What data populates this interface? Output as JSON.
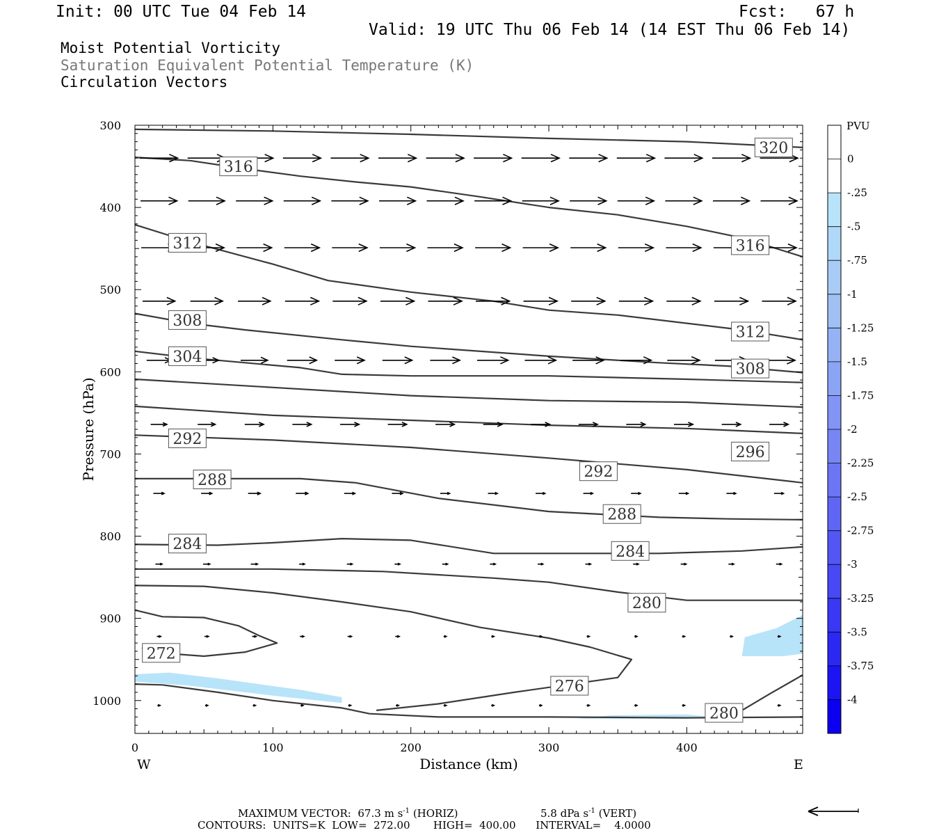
{
  "header": {
    "init": "Init: 00 UTC Tue 04 Feb 14",
    "fcst": "Fcst:   67 h",
    "valid": "Valid: 19 UTC Thu 06 Feb 14 (14 EST Thu 06 Feb 14)"
  },
  "fields": {
    "field1": "Moist Potential Vorticity",
    "field2": "Saturation Equivalent Potential Temperature (K)",
    "field3": "Circulation Vectors"
  },
  "footer": {
    "max_vector_label": "MAXIMUM VECTOR:",
    "horiz_value": "67.3",
    "horiz_units": "m s",
    "horiz_tag": "(HORIZ)",
    "vert_value": "5.8",
    "vert_units": "dPa s",
    "vert_tag": "(VERT)",
    "exp": "-1",
    "contours_line": "CONTOURS:  UNITS=K  LOW=  272.00       HIGH=  400.00      INTERVAL=    4.0000"
  },
  "colors": {
    "contour": "#3a3a3a",
    "vector": "#000000",
    "pv_fill": "#b8e4fa"
  },
  "chart_data": {
    "type": "cross-section",
    "xlabel": "Distance (km)",
    "ylabel": "Pressure (hPa)",
    "xlim": [
      0,
      484
    ],
    "ylim": [
      1040,
      300
    ],
    "xticks": [
      0,
      100,
      200,
      300,
      400
    ],
    "yticks": [
      300,
      400,
      500,
      600,
      700,
      800,
      900,
      1000
    ],
    "x_end_labels": {
      "left": "W",
      "right": "E"
    },
    "colorbar": {
      "title": "PVU",
      "levels": [
        "0",
        "-.25",
        "-.5",
        "-.75",
        "-1",
        "-1.25",
        "-1.5",
        "-1.75",
        "-2",
        "-2.25",
        "-2.5",
        "-2.75",
        "-3",
        "-3.25",
        "-3.5",
        "-3.75",
        "-4"
      ],
      "colors": [
        "#ffffff",
        "#ffffff",
        "#b8e4fa",
        "#b0d8f8",
        "#a8ccf6",
        "#a0c0f4",
        "#96b2f4",
        "#8ca4f4",
        "#8294f4",
        "#7886f4",
        "#6c76f4",
        "#6066f4",
        "#5456f4",
        "#4848f4",
        "#3a38f4",
        "#2c28f4",
        "#1c14f4",
        "#0c00f0"
      ]
    },
    "theta_es_contours": [
      {
        "value": 320,
        "points": [
          [
            0,
            305
          ],
          [
            100,
            307
          ],
          [
            200,
            311
          ],
          [
            300,
            316
          ],
          [
            400,
            320
          ],
          [
            484,
            327
          ]
        ]
      },
      {
        "value": 316,
        "points": [
          [
            0,
            339
          ],
          [
            40,
            343
          ],
          [
            80,
            353
          ],
          [
            120,
            362
          ],
          [
            160,
            369
          ],
          [
            200,
            375
          ],
          [
            250,
            387
          ],
          [
            300,
            400
          ],
          [
            350,
            409
          ],
          [
            400,
            423
          ],
          [
            440,
            437
          ],
          [
            484,
            460
          ]
        ]
      },
      {
        "value": 312,
        "points": [
          [
            0,
            421
          ],
          [
            40,
            442
          ],
          [
            60,
            451
          ],
          [
            100,
            469
          ],
          [
            140,
            489
          ],
          [
            200,
            503
          ],
          [
            260,
            514
          ],
          [
            300,
            525
          ],
          [
            350,
            531
          ],
          [
            400,
            541
          ],
          [
            440,
            549
          ],
          [
            484,
            561
          ]
        ]
      },
      {
        "value": 308,
        "points": [
          [
            0,
            529
          ],
          [
            40,
            541
          ],
          [
            80,
            549
          ],
          [
            150,
            561
          ],
          [
            200,
            569
          ],
          [
            300,
            581
          ],
          [
            380,
            589
          ],
          [
            430,
            593
          ],
          [
            484,
            601
          ]
        ]
      },
      {
        "value": 304,
        "points": [
          [
            0,
            575
          ],
          [
            40,
            583
          ],
          [
            80,
            589
          ],
          [
            120,
            595
          ],
          [
            150,
            603
          ],
          [
            200,
            605
          ],
          [
            300,
            605
          ],
          [
            400,
            609
          ],
          [
            484,
            613
          ]
        ]
      },
      {
        "value": 300,
        "points": [
          [
            0,
            609
          ],
          [
            100,
            619
          ],
          [
            200,
            629
          ],
          [
            300,
            635
          ],
          [
            400,
            637
          ],
          [
            484,
            643
          ]
        ]
      },
      {
        "value": 296,
        "points": [
          [
            0,
            642
          ],
          [
            100,
            653
          ],
          [
            200,
            659
          ],
          [
            300,
            665
          ],
          [
            400,
            669
          ],
          [
            484,
            675
          ]
        ]
      },
      {
        "value": 292,
        "points": [
          [
            0,
            677
          ],
          [
            100,
            683
          ],
          [
            200,
            692
          ],
          [
            300,
            705
          ],
          [
            400,
            719
          ],
          [
            484,
            735
          ]
        ]
      },
      {
        "value": 288,
        "points": [
          [
            0,
            730
          ],
          [
            80,
            730
          ],
          [
            120,
            730
          ],
          [
            160,
            735
          ],
          [
            220,
            754
          ],
          [
            300,
            770
          ],
          [
            380,
            777
          ],
          [
            430,
            779
          ],
          [
            484,
            780
          ]
        ]
      },
      {
        "value": 284,
        "points": [
          [
            0,
            810
          ],
          [
            60,
            811
          ],
          [
            100,
            808
          ],
          [
            150,
            803
          ],
          [
            200,
            805
          ],
          [
            260,
            821
          ],
          [
            320,
            821
          ],
          [
            380,
            821
          ],
          [
            440,
            818
          ],
          [
            484,
            813
          ]
        ]
      },
      {
        "value": 280,
        "points": [
          [
            0,
            840
          ],
          [
            100,
            840
          ],
          [
            180,
            843
          ],
          [
            260,
            851
          ],
          [
            300,
            856
          ],
          [
            350,
            868
          ],
          [
            400,
            878
          ],
          [
            484,
            878
          ]
        ]
      },
      {
        "value": 280,
        "points": [
          [
            0,
            860
          ],
          [
            50,
            861
          ],
          [
            100,
            869
          ],
          [
            150,
            880
          ],
          [
            200,
            892
          ],
          [
            250,
            911
          ],
          [
            300,
            924
          ],
          [
            330,
            935
          ],
          [
            360,
            950
          ],
          [
            350,
            972
          ],
          [
            275,
            990
          ],
          [
            220,
            1004
          ],
          [
            175,
            1012
          ]
        ]
      },
      {
        "value": 272,
        "points": [
          [
            0,
            890
          ],
          [
            20,
            898
          ],
          [
            50,
            899
          ],
          [
            75,
            909
          ],
          [
            90,
            921
          ],
          [
            103,
            930
          ],
          [
            80,
            941
          ],
          [
            50,
            946
          ],
          [
            25,
            943
          ],
          [
            5,
            936
          ]
        ]
      },
      {
        "value": 276,
        "points": [
          [
            0,
            980
          ],
          [
            20,
            981
          ],
          [
            60,
            990
          ],
          [
            100,
            1000
          ],
          [
            150,
            1009
          ],
          [
            170,
            1016
          ],
          [
            220,
            1020
          ],
          [
            300,
            1020
          ],
          [
            400,
            1021
          ],
          [
            484,
            1020
          ]
        ]
      },
      {
        "value": 280,
        "points": [
          [
            440,
            1012
          ],
          [
            460,
            992
          ],
          [
            484,
            969
          ]
        ]
      }
    ],
    "contour_labels": [
      {
        "text": "320",
        "x": 463,
        "p": 327
      },
      {
        "text": "316",
        "x": 75,
        "p": 350
      },
      {
        "text": "316",
        "x": 446,
        "p": 446
      },
      {
        "text": "312",
        "x": 38,
        "p": 443
      },
      {
        "text": "312",
        "x": 446,
        "p": 551
      },
      {
        "text": "308",
        "x": 38,
        "p": 537
      },
      {
        "text": "308",
        "x": 446,
        "p": 596
      },
      {
        "text": "304",
        "x": 38,
        "p": 581
      },
      {
        "text": "296",
        "x": 446,
        "p": 697
      },
      {
        "text": "292",
        "x": 38,
        "p": 681
      },
      {
        "text": "292",
        "x": 336,
        "p": 721
      },
      {
        "text": "288",
        "x": 56,
        "p": 731
      },
      {
        "text": "288",
        "x": 353,
        "p": 773
      },
      {
        "text": "284",
        "x": 38,
        "p": 809
      },
      {
        "text": "284",
        "x": 359,
        "p": 818
      },
      {
        "text": "280",
        "x": 371,
        "p": 881
      },
      {
        "text": "276",
        "x": 315,
        "p": 982
      },
      {
        "text": "272",
        "x": 19,
        "p": 942
      },
      {
        "text": "280",
        "x": 427,
        "p": 1015
      }
    ],
    "pv_regions": [
      {
        "value": -0.25,
        "points": [
          [
            0,
            968
          ],
          [
            25,
            966
          ],
          [
            60,
            973
          ],
          [
            120,
            987
          ],
          [
            150,
            996
          ],
          [
            150,
            1003
          ],
          [
            100,
            994
          ],
          [
            40,
            982
          ],
          [
            0,
            977
          ]
        ]
      },
      {
        "value": -0.25,
        "points": [
          [
            440,
            946
          ],
          [
            442,
            923
          ],
          [
            465,
            912
          ],
          [
            484,
            896
          ],
          [
            484,
            943
          ],
          [
            470,
            946
          ]
        ]
      },
      {
        "value": -0.25,
        "points": [
          [
            320,
            1022
          ],
          [
            345,
            1018
          ],
          [
            400,
            1017
          ],
          [
            420,
            1020
          ],
          [
            400,
            1022
          ],
          [
            340,
            1022
          ]
        ]
      }
    ],
    "vector_rows": [
      {
        "p": 340,
        "lengths": [
          0.28,
          0.28,
          0.28,
          0.28,
          0.28,
          0.28,
          0.28,
          0.28,
          0.28,
          0.28,
          0.28,
          0.28,
          0.28,
          0.28
        ]
      },
      {
        "p": 392,
        "lengths": [
          0.27,
          0.27,
          0.27,
          0.27,
          0.27,
          0.27,
          0.27,
          0.27,
          0.27,
          0.27,
          0.27,
          0.27,
          0.27,
          0.27
        ]
      },
      {
        "p": 449,
        "lengths": [
          0.26,
          0.26,
          0.26,
          0.26,
          0.26,
          0.26,
          0.26,
          0.26,
          0.26,
          0.26,
          0.26,
          0.26,
          0.26,
          0.26
        ]
      },
      {
        "p": 514,
        "lengths": [
          0.24,
          0.24,
          0.24,
          0.25,
          0.25,
          0.25,
          0.25,
          0.25,
          0.25,
          0.25,
          0.25,
          0.25,
          0.25,
          0.25
        ]
      },
      {
        "p": 586,
        "lengths": [
          0.18,
          0.18,
          0.2,
          0.22,
          0.22,
          0.22,
          0.22,
          0.23,
          0.23,
          0.23,
          0.23,
          0.24,
          0.24,
          0.24
        ]
      },
      {
        "p": 664,
        "lengths": [
          0.12,
          0.13,
          0.14,
          0.14,
          0.14,
          0.14,
          0.14,
          0.14,
          0.14,
          0.14,
          0.14,
          0.14,
          0.14,
          0.14
        ]
      },
      {
        "p": 748,
        "lengths": [
          0.08,
          0.08,
          0.09,
          0.09,
          0.08,
          0.08,
          0.07,
          0.07,
          0.07,
          0.07,
          0.07,
          0.07,
          0.07,
          0.07
        ]
      },
      {
        "p": 834,
        "lengths": [
          0.05,
          0.05,
          0.05,
          0.04,
          0.04,
          0.04,
          0.04,
          0.04,
          0.04,
          0.04,
          0.04,
          0.04,
          0.04,
          0.04
        ]
      },
      {
        "p": 922,
        "lengths": [
          0.03,
          0.03,
          0.03,
          0.03,
          0.03,
          0.03,
          0.02,
          0.02,
          0.02,
          0.02,
          0.02,
          0.02,
          0.02,
          0.02
        ]
      },
      {
        "p": 1006,
        "lengths": [
          0.02,
          0.02,
          0.02,
          0.02,
          0.02,
          0.02,
          0.02,
          0.02,
          0.02,
          0.02,
          0.02,
          0.02,
          0.02,
          0.02
        ]
      }
    ]
  }
}
